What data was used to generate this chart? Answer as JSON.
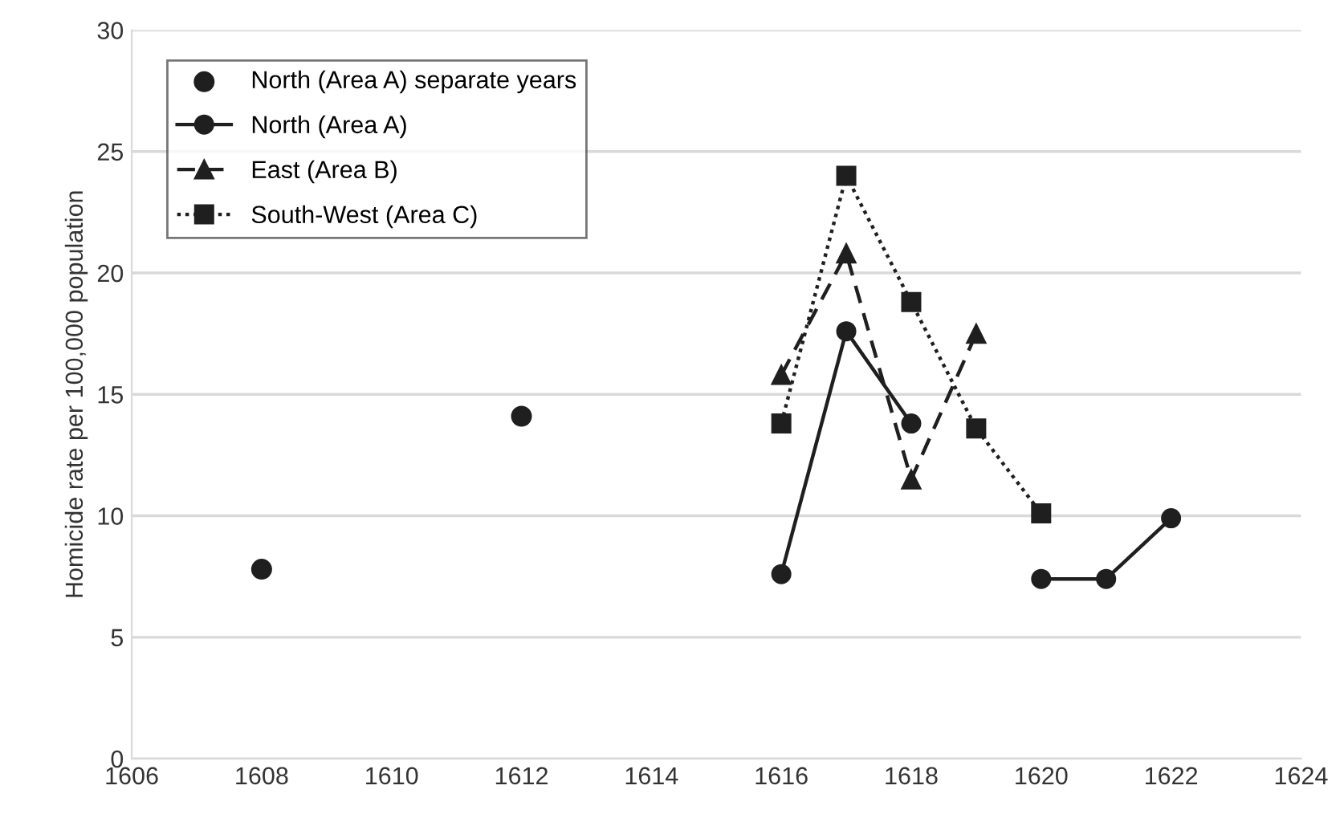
{
  "chart_data": {
    "type": "line",
    "ylabel": "Homicide rate per 100,000 population",
    "xlim": [
      1606,
      1624
    ],
    "xticks": [
      1606,
      1608,
      1610,
      1612,
      1614,
      1616,
      1618,
      1620,
      1622,
      1624
    ],
    "ylim": [
      0,
      30
    ],
    "yticks": [
      0,
      5,
      10,
      15,
      20,
      25,
      30
    ],
    "grid": "y",
    "legend": "top left",
    "series": [
      {
        "name": "North (Area A) separate years",
        "type": "scatter",
        "marker": "circle",
        "color": "#1f1f1f",
        "x": [
          1608,
          1612
        ],
        "values": [
          7.8,
          14.1
        ]
      },
      {
        "name": "North (Area A)",
        "marker": "circle",
        "line_style": "solid",
        "color": "#1f1f1f",
        "x": [
          1616,
          1617,
          1618,
          1619,
          1620,
          1621,
          1622
        ],
        "values": [
          7.6,
          17.6,
          13.8,
          null,
          7.4,
          7.4,
          9.9
        ]
      },
      {
        "name": "East (Area B)",
        "marker": "triangle",
        "line_style": "dashed",
        "color": "#1f1f1f",
        "x": [
          1616,
          1617,
          1618,
          1619
        ],
        "values": [
          15.8,
          20.8,
          11.5,
          17.5
        ]
      },
      {
        "name": "South-West (Area C)",
        "marker": "square",
        "line_style": "dotted",
        "color": "#1f1f1f",
        "x": [
          1616,
          1617,
          1618,
          1619,
          1620
        ],
        "values": [
          13.8,
          24.0,
          18.8,
          13.6,
          10.1
        ]
      }
    ]
  }
}
